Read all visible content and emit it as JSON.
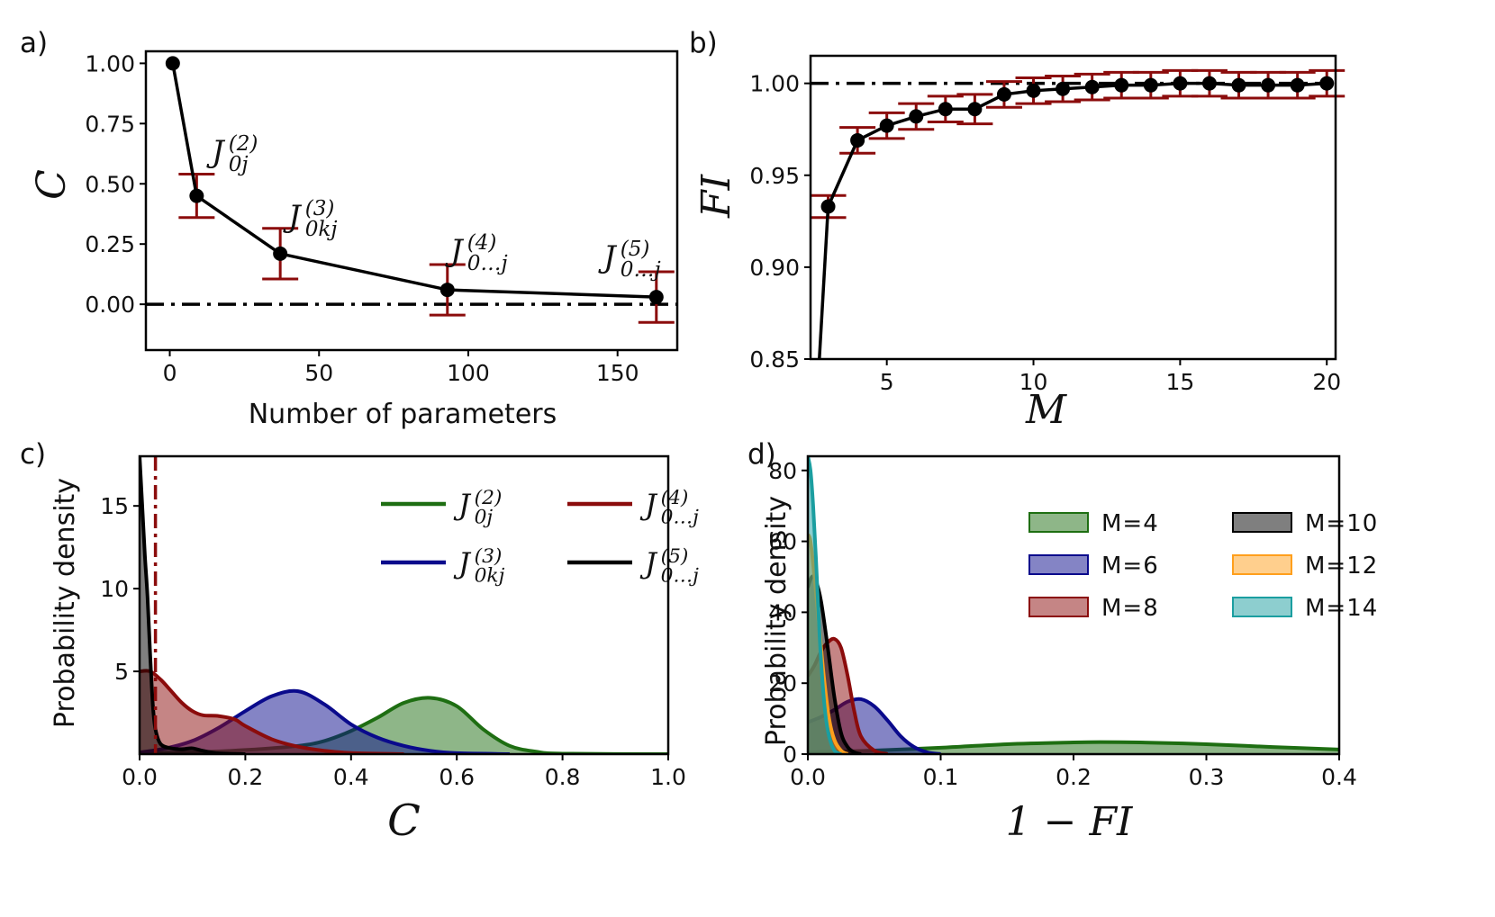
{
  "colors": {
    "green": "#1e6e12",
    "blue": "#0a0a8c",
    "red": "#8b0c0c",
    "black": "#000000",
    "orange": "#ff9f1c",
    "teal": "#1b9ea0",
    "errbar": "#8b0c0c"
  },
  "chart_data": [
    {
      "panel": "a)",
      "type": "line",
      "xlabel": "Number of parameters",
      "ylabel": "C",
      "xlim": [
        -8,
        170
      ],
      "ylim": [
        -0.19,
        1.05
      ],
      "xticks": [
        0,
        50,
        100,
        150
      ],
      "yticks": [
        0.0,
        0.25,
        0.5,
        0.75,
        1.0
      ],
      "ytick_labels": [
        "0.00",
        "0.25",
        "0.50",
        "0.75",
        "1.00"
      ],
      "reference_line": 0.0,
      "points": [
        {
          "x": 1,
          "y": 1.0,
          "err": 0.0,
          "label_base": "",
          "label_sub": "",
          "label_sup": ""
        },
        {
          "x": 9,
          "y": 0.45,
          "err": 0.09,
          "label_base": "J",
          "label_sub": "0j",
          "label_sup": "(2)"
        },
        {
          "x": 37,
          "y": 0.21,
          "err": 0.105,
          "label_base": "J",
          "label_sub": "0kj",
          "label_sup": "(3)"
        },
        {
          "x": 93,
          "y": 0.06,
          "err": 0.105,
          "label_base": "J",
          "label_sub": "0…j",
          "label_sup": "(4)"
        },
        {
          "x": 163,
          "y": 0.03,
          "err": 0.105,
          "label_base": "J",
          "label_sub": "0…j",
          "label_sup": "(5)"
        }
      ]
    },
    {
      "panel": "b)",
      "type": "line",
      "xlabel": "M",
      "ylabel": "FI",
      "xlim": [
        2.4,
        20.3
      ],
      "ylim": [
        0.85,
        1.015
      ],
      "xticks": [
        5,
        10,
        15,
        20
      ],
      "yticks": [
        0.85,
        0.9,
        0.95,
        1.0
      ],
      "ytick_labels": [
        "0.85",
        "0.90",
        "0.95",
        "1.00"
      ],
      "reference_line": 1.0,
      "x": [
        2.7,
        3,
        4,
        5,
        6,
        7,
        8,
        9,
        10,
        11,
        12,
        13,
        14,
        15,
        16,
        17,
        18,
        19,
        20
      ],
      "y": [
        0.85,
        0.933,
        0.969,
        0.977,
        0.982,
        0.986,
        0.986,
        0.994,
        0.996,
        0.997,
        0.998,
        0.999,
        0.999,
        1.0,
        1.0,
        0.999,
        0.999,
        0.999,
        1.0
      ],
      "err": [
        0,
        0.006,
        0.007,
        0.007,
        0.007,
        0.007,
        0.008,
        0.007,
        0.007,
        0.007,
        0.007,
        0.007,
        0.007,
        0.007,
        0.007,
        0.007,
        0.007,
        0.007,
        0.007
      ]
    },
    {
      "panel": "c)",
      "type": "area",
      "xlabel": "C",
      "ylabel": "Probability density",
      "xlim": [
        0.0,
        1.0
      ],
      "ylim": [
        0.0,
        18.0
      ],
      "xticks": [
        0.0,
        0.2,
        0.4,
        0.6,
        0.8,
        1.0
      ],
      "xtick_labels": [
        "0.0",
        "0.2",
        "0.4",
        "0.6",
        "0.8",
        "1.0"
      ],
      "yticks": [
        5,
        10,
        15
      ],
      "reference_line_x": 0.03,
      "series": [
        {
          "name": "J(2) 0j",
          "label_base": "J",
          "label_sub": "0j",
          "label_sup": "(2)",
          "color_key": "green",
          "x": [
            0,
            0.1,
            0.2,
            0.3,
            0.35,
            0.4,
            0.45,
            0.5,
            0.55,
            0.6,
            0.65,
            0.7,
            0.75,
            0.8,
            1.0
          ],
          "y": [
            0.02,
            0.1,
            0.25,
            0.5,
            0.8,
            1.4,
            2.2,
            3.1,
            3.4,
            2.9,
            1.5,
            0.5,
            0.15,
            0.03,
            0.0
          ]
        },
        {
          "name": "J(3) 0kj",
          "label_base": "J",
          "label_sub": "0kj",
          "label_sup": "(3)",
          "color_key": "blue",
          "x": [
            0,
            0.05,
            0.1,
            0.15,
            0.2,
            0.25,
            0.3,
            0.35,
            0.4,
            0.45,
            0.5,
            0.55,
            0.6,
            0.7
          ],
          "y": [
            0.1,
            0.35,
            0.8,
            1.6,
            2.6,
            3.5,
            3.8,
            3.0,
            1.8,
            1.0,
            0.5,
            0.2,
            0.06,
            0.0
          ]
        },
        {
          "name": "J(4) 0...j",
          "label_base": "J",
          "label_sub": "0…j",
          "label_sup": "(4)",
          "color_key": "red",
          "x": [
            0,
            0.02,
            0.04,
            0.06,
            0.08,
            0.1,
            0.12,
            0.15,
            0.18,
            0.2,
            0.25,
            0.3,
            0.35,
            0.4,
            0.5
          ],
          "y": [
            5.0,
            5.0,
            4.5,
            3.8,
            3.1,
            2.6,
            2.35,
            2.3,
            2.1,
            1.7,
            0.9,
            0.45,
            0.2,
            0.07,
            0.0
          ]
        },
        {
          "name": "J(5) 0...j",
          "label_base": "J",
          "label_sub": "0…j",
          "label_sup": "(5)",
          "color_key": "black",
          "x": [
            0,
            0.005,
            0.01,
            0.015,
            0.02,
            0.025,
            0.03,
            0.04,
            0.06,
            0.08,
            0.1,
            0.12,
            0.15,
            0.2
          ],
          "y": [
            18.0,
            15.0,
            12.0,
            9.5,
            6.0,
            3.0,
            1.5,
            0.6,
            0.35,
            0.3,
            0.35,
            0.2,
            0.05,
            0.0
          ]
        }
      ]
    },
    {
      "panel": "d)",
      "type": "area",
      "xlabel": "1 − FI",
      "ylabel": "Probability density",
      "xlim": [
        0.0,
        0.4
      ],
      "ylim": [
        0.0,
        84.0
      ],
      "xticks": [
        0.0,
        0.1,
        0.2,
        0.3,
        0.4
      ],
      "xtick_labels": [
        "0.0",
        "0.1",
        "0.2",
        "0.3",
        "0.4"
      ],
      "yticks": [
        0,
        20,
        40,
        60,
        80
      ],
      "series": [
        {
          "name": "M=4",
          "color_key": "green",
          "x": [
            0,
            0.05,
            0.1,
            0.15,
            0.2,
            0.22,
            0.25,
            0.3,
            0.35,
            0.4
          ],
          "y": [
            0.5,
            1.0,
            1.8,
            2.8,
            3.3,
            3.4,
            3.3,
            2.8,
            2.0,
            1.3
          ]
        },
        {
          "name": "M=6",
          "color_key": "blue",
          "x": [
            0,
            0.01,
            0.02,
            0.03,
            0.04,
            0.05,
            0.06,
            0.07,
            0.08,
            0.09,
            0.1
          ],
          "y": [
            9,
            10.5,
            12.5,
            14.8,
            15.5,
            13.5,
            9.5,
            5,
            2,
            0.5,
            0
          ]
        },
        {
          "name": "M=8",
          "color_key": "red",
          "x": [
            0,
            0.005,
            0.01,
            0.015,
            0.02,
            0.025,
            0.03,
            0.035,
            0.04,
            0.05,
            0.06
          ],
          "y": [
            22,
            25,
            29,
            31.5,
            32.5,
            30,
            22,
            12,
            5,
            1,
            0
          ]
        },
        {
          "name": "M=10",
          "color_key": "black",
          "x": [
            0,
            0.003,
            0.006,
            0.01,
            0.015,
            0.02,
            0.025,
            0.03,
            0.035,
            0.04
          ],
          "y": [
            47,
            50,
            49,
            43,
            30,
            16,
            6,
            2,
            0.5,
            0
          ]
        },
        {
          "name": "M=12",
          "color_key": "orange",
          "x": [
            0,
            0.002,
            0.005,
            0.008,
            0.012,
            0.016,
            0.02,
            0.025,
            0.03
          ],
          "y": [
            62,
            60,
            50,
            38,
            22,
            10,
            4,
            1,
            0
          ]
        },
        {
          "name": "M=14",
          "color_key": "teal",
          "x": [
            0,
            0.002,
            0.004,
            0.006,
            0.008,
            0.01,
            0.013,
            0.016,
            0.02,
            0.025
          ],
          "y": [
            84,
            80,
            70,
            56,
            40,
            26,
            12,
            5,
            1,
            0
          ]
        }
      ]
    }
  ]
}
